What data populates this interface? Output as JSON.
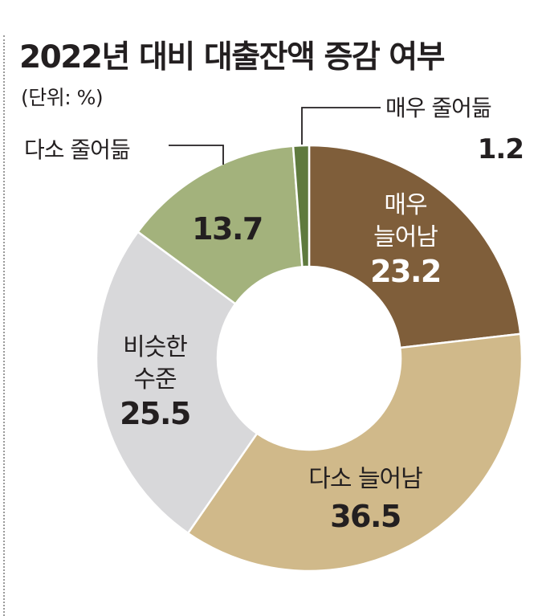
{
  "title": "2022년 대비 대출잔액 증감 여부",
  "unit": "(단위: %)",
  "chart_data": {
    "type": "pie",
    "variant": "donut",
    "title": "2022년 대비 대출잔액 증감 여부",
    "subtitle": "(단위: %)",
    "start": "top",
    "direction": "clockwise",
    "slices": [
      {
        "name": "매우 늘어남",
        "lines": [
          "매우",
          "늘어남"
        ],
        "value": 23.2,
        "value_label": "23.2",
        "color": "#7f5e3a",
        "text_color": "#ffffff",
        "label_position": "inside"
      },
      {
        "name": "다소 늘어남",
        "lines": [
          "다소 늘어남"
        ],
        "value": 36.5,
        "value_label": "36.5",
        "color": "#d0b98a",
        "text_color": "#231f20",
        "label_position": "inside"
      },
      {
        "name": "비슷한 수준",
        "lines": [
          "비슷한",
          "수준"
        ],
        "value": 25.5,
        "value_label": "25.5",
        "color": "#d8d8da",
        "text_color": "#231f20",
        "label_position": "inside"
      },
      {
        "name": "다소 줄어듦",
        "lines": [
          "다소 줄어듦"
        ],
        "value": 13.7,
        "value_label": "13.7",
        "color": "#a3b27c",
        "text_color": "#231f20",
        "label_position": "outside-left"
      },
      {
        "name": "매우 줄어듦",
        "lines": [
          "매우 줄어듦"
        ],
        "value": 1.2,
        "value_label": "1.2",
        "color": "#5f7a3e",
        "text_color": "#231f20",
        "label_position": "outside-right"
      }
    ]
  }
}
